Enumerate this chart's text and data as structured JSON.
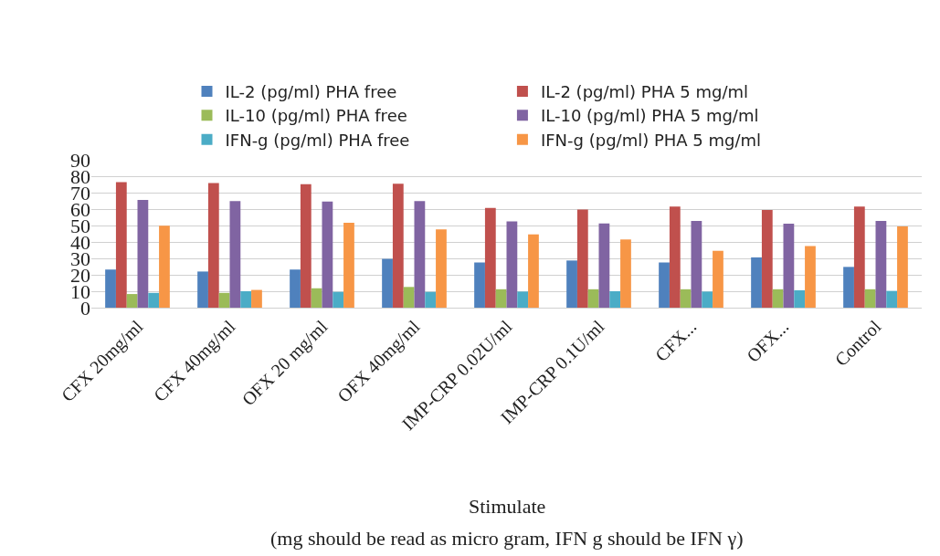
{
  "chart_data": {
    "type": "bar",
    "xlabel": "Stimulate",
    "annotations": [
      "(mg should be read as micro gram, IFN g should be IFN γ)"
    ],
    "categories": [
      "CFX 20mg/ml",
      "CFX 40mg/ml",
      "OFX 20 mg/ml",
      "OFX 40mg/ml",
      "IMP-CRP 0.02U/ml",
      "IMP-CRP 0.1U/ml",
      "CFX...",
      "OFX...",
      "Control"
    ],
    "series": [
      {
        "name": "IL-2 (pg/ml) PHA free",
        "color": "#4f81bd",
        "values": [
          23.2,
          22,
          23.2,
          29.7,
          27.5,
          28.7,
          27.5,
          30.6,
          24.8
        ]
      },
      {
        "name": "IL-2 (pg/ml) PHA 5 mg/ml",
        "color": "#c0504d",
        "values": [
          76.4,
          75.8,
          75.2,
          75.4,
          60.7,
          59.7,
          61.5,
          59.5,
          61.5
        ]
      },
      {
        "name": "IL-10 (pg/ml) PHA free",
        "color": "#9bbb59",
        "values": [
          8.3,
          9,
          11.8,
          12.6,
          11.2,
          11.2,
          11.2,
          11.2,
          11.2
        ]
      },
      {
        "name": "IL-10 (pg/ml) PHA 5 mg/ml",
        "color": "#8064a2",
        "values": [
          65.6,
          64.8,
          64.6,
          64.8,
          52.5,
          51.3,
          52.8,
          51.1,
          52.8
        ]
      },
      {
        "name": "IFN-g (pg/ml) PHA free",
        "color": "#4bacc6",
        "values": [
          9,
          10,
          9.6,
          9.6,
          9.8,
          10,
          9.8,
          10.6,
          10.2
        ]
      },
      {
        "name": "IFN-g (pg/ml) PHA 5 mg/ml",
        "color": "#f79646",
        "values": [
          49.9,
          10.8,
          51.7,
          47.7,
          44.6,
          41.5,
          34.6,
          37.5,
          49.5
        ]
      }
    ],
    "ylim": [
      0,
      90
    ],
    "yticks": [
      0,
      10,
      20,
      30,
      40,
      50,
      60,
      70,
      80,
      90
    ],
    "grid": "y",
    "legend": "top"
  }
}
